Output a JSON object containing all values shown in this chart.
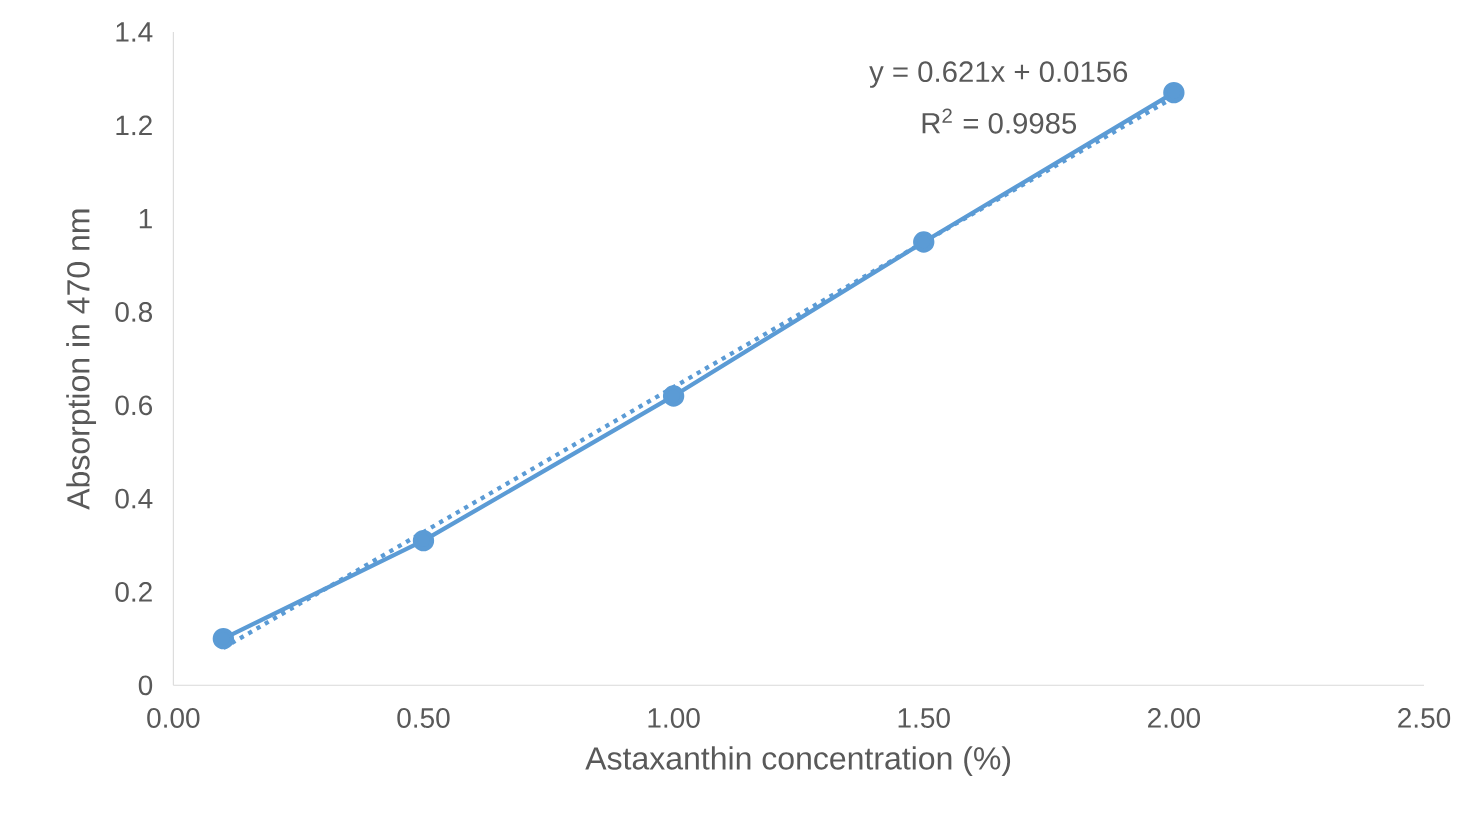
{
  "chart_data": {
    "type": "line",
    "xlabel": "Astaxanthin concentration (%)",
    "ylabel": "Absorption in 470 nm",
    "x": [
      0.1,
      0.5,
      1.0,
      1.5,
      2.0
    ],
    "series": [
      {
        "color": "#5b9bd5",
        "values": [
          0.1,
          0.31,
          0.62,
          0.95,
          1.27
        ],
        "marker": "circle",
        "line_style": "solid"
      },
      {
        "type": "line",
        "x": [
          0.1,
          2.0
        ],
        "color": "#5b9bd5",
        "values": [
          0.08,
          1.26
        ],
        "marker": "none",
        "line_style": "dotted"
      }
    ],
    "annotations": [
      "y = 0.621x + 0.0156",
      "R$^{2}$ = 0.9985"
    ],
    "xlim": [
      0,
      2.5
    ],
    "xticks": [
      {
        "value": 0,
        "label": "0.00"
      },
      {
        "value": 0.5,
        "label": "0.50"
      },
      {
        "value": 1,
        "label": "1.00"
      },
      {
        "value": 1.5,
        "label": "1.50"
      },
      {
        "value": 2,
        "label": "2.00"
      },
      {
        "value": 2.5,
        "label": "2.50"
      }
    ],
    "ylim": [
      0,
      1.4
    ],
    "yticks": [
      0,
      0.2,
      0.4,
      0.6,
      0.8,
      1,
      1.2,
      1.4
    ],
    "grid": false
  }
}
